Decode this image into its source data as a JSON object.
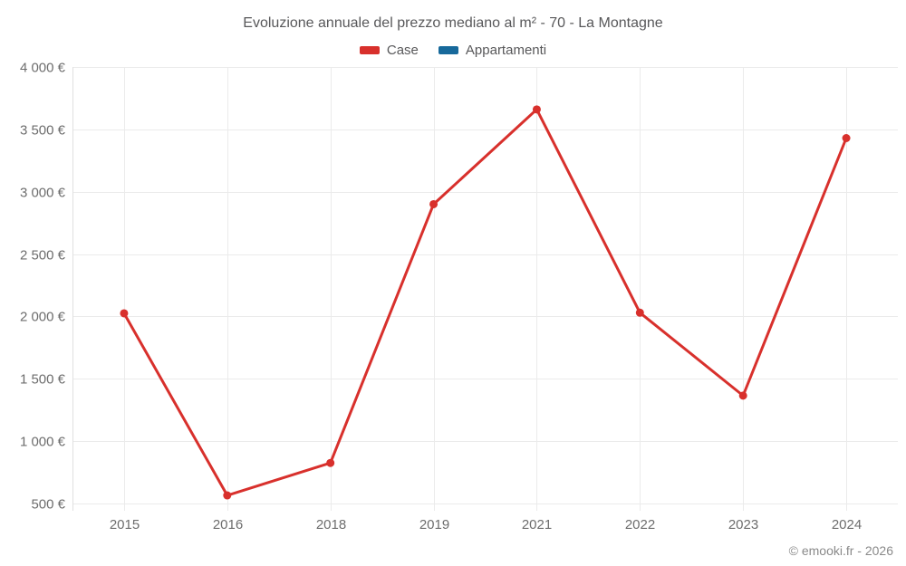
{
  "chart_data": {
    "type": "line",
    "title": "Evoluzione annuale del prezzo mediano al m² - 70 - La Montagne",
    "categories": [
      "2015",
      "2016",
      "2018",
      "2019",
      "2021",
      "2022",
      "2023",
      "2024"
    ],
    "series": [
      {
        "name": "Case",
        "color": "#d8302c",
        "values": [
          2025,
          565,
          825,
          2900,
          3660,
          2030,
          1365,
          3430
        ]
      },
      {
        "name": "Appartamenti",
        "color": "#17699b",
        "values": []
      }
    ],
    "ylim": [
      500,
      4000
    ],
    "yticks": [
      {
        "value": 4000,
        "label": "4 000 €"
      },
      {
        "value": 3500,
        "label": "3 500 €"
      },
      {
        "value": 3000,
        "label": "3 000 €"
      },
      {
        "value": 2500,
        "label": "2 500 €"
      },
      {
        "value": 2000,
        "label": "2 000 €"
      },
      {
        "value": 1500,
        "label": "1 500 €"
      },
      {
        "value": 1000,
        "label": "1 000 €"
      },
      {
        "value": 500,
        "label": "500 €"
      }
    ],
    "grid": true,
    "legend_position": "top",
    "xlabel": "",
    "ylabel": "",
    "attribution": "© emooki.fr - 2026",
    "colors": {
      "grid": "#ebebeb",
      "axis": "#e0e0e0",
      "tick_text": "#6d6d6d",
      "title_text": "#58585a"
    }
  }
}
